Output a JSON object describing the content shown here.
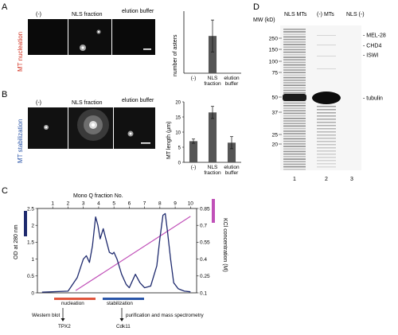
{
  "panels": {
    "A": {
      "letter": "A",
      "side_label": "MT nucleation",
      "image_labels": [
        "(-)",
        "NLS fraction",
        "elution buffer"
      ],
      "chart_ylabel": "number of asters",
      "chart_cats": [
        "(-)",
        "NLS fraction",
        "elution buffer"
      ]
    },
    "B": {
      "letter": "B",
      "side_label": "MT stabilization",
      "image_labels": [
        "(-)",
        "NLS fraction",
        "elution buffer"
      ],
      "chart_ylabel": "MT length (μm)",
      "chart_cats": [
        "(-)",
        "NLS fraction",
        "elution buffer"
      ]
    },
    "C": {
      "letter": "C",
      "top_label": "Mono Q fraction No.",
      "left_label": "OD at 280 nm",
      "right_label": "KCl concentration (M)",
      "bars": {
        "nucleation": "nucleation",
        "stabilization": "stabilization"
      },
      "arrows": {
        "western": "Western blot",
        "tpx2": "TPX2",
        "cdk11": "Cdk11",
        "purify": "purification and mass spectrometry"
      }
    },
    "D": {
      "letter": "D",
      "mw_label": "MW (kD)",
      "lanes": [
        "NLS MTs",
        "(-) MTs",
        "NLS (-)"
      ],
      "lane_numbers": [
        "1",
        "2",
        "3"
      ],
      "mw_markers": [
        "250",
        "150",
        "100",
        "75",
        "50",
        "37",
        "25",
        "20"
      ],
      "band_labels": [
        "MEL-28",
        "CHD4",
        "ISWI",
        "tubulin"
      ]
    }
  },
  "chart_data": [
    {
      "type": "bar",
      "panel": "A",
      "categories": [
        "(-)",
        "NLS fraction",
        "elution buffer"
      ],
      "values": [
        0,
        42,
        0
      ],
      "errors": [
        0,
        18,
        0
      ],
      "ylabel": "number of asters",
      "ylim": [
        0,
        70
      ]
    },
    {
      "type": "bar",
      "panel": "B",
      "categories": [
        "(-)",
        "NLS fraction",
        "elution buffer"
      ],
      "values": [
        7,
        16.5,
        6.5
      ],
      "errors": [
        0.7,
        2,
        2
      ],
      "ylabel": "MT length (μm)",
      "ylim": [
        0,
        20
      ],
      "yticks": [
        0,
        5,
        10,
        15,
        20
      ]
    },
    {
      "type": "line",
      "panel": "C",
      "xlabel": "Mono Q fraction No.",
      "x_ticks": [
        1,
        2,
        3,
        4,
        5,
        6,
        7,
        8,
        9,
        10
      ],
      "ylabel_left": "OD at 280 nm",
      "ylim_left": [
        0,
        2.5
      ],
      "yticks_left": [
        0,
        0.5,
        1,
        1.5,
        2,
        2.5
      ],
      "ylabel_right": "KCl concentration (M)",
      "ylim_right": [
        0.1,
        0.85
      ],
      "yticks_right": [
        0.1,
        0.25,
        0.4,
        0.55,
        0.7,
        0.85
      ],
      "series": [
        {
          "name": "",
          "color": "#1e2a6e",
          "x": [
            0.3,
            2.0,
            2.6,
            3.0,
            3.2,
            3.4,
            3.6,
            3.8,
            3.95,
            4.1,
            4.3,
            4.5,
            4.7,
            4.9,
            5.0,
            5.2,
            5.5,
            5.8,
            6.0,
            6.2,
            6.4,
            6.7,
            7.0,
            7.4,
            7.8,
            8.0,
            8.2,
            8.35,
            8.5,
            8.7,
            8.9,
            9.2,
            9.6,
            10.0
          ],
          "y": [
            0.02,
            0.05,
            0.45,
            1.0,
            1.1,
            0.9,
            1.4,
            2.25,
            2.0,
            1.6,
            1.9,
            1.55,
            1.2,
            1.15,
            1.2,
            1.0,
            0.55,
            0.25,
            0.15,
            0.35,
            0.55,
            0.3,
            0.15,
            0.2,
            0.8,
            1.6,
            2.3,
            2.35,
            1.8,
            1.0,
            0.3,
            0.12,
            0.05,
            0.03
          ]
        },
        {
          "name": "",
          "color": "#c050b8",
          "x": [
            2.5,
            10.0
          ],
          "y": [
            0.12,
            0.78
          ]
        }
      ]
    }
  ]
}
